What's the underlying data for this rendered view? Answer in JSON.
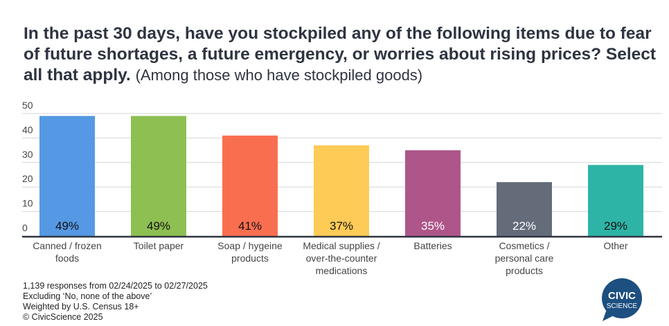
{
  "title": {
    "main": "In the past 30 days, have you stockpiled any of the following items due to fear of future shortages, a future emergency, or worries about rising prices? Select all that apply.",
    "sub": "(Among those who have stockpiled goods)"
  },
  "chart_data": {
    "type": "bar",
    "title": "In the past 30 days, have you stockpiled any of the following items due to fear of future shortages, a future emergency, or worries about rising prices? Select all that apply. (Among those who have stockpiled goods)",
    "categories": [
      [
        "Canned / frozen",
        "foods"
      ],
      [
        "Toilet paper"
      ],
      [
        "Soap / hygeine",
        "products"
      ],
      [
        "Medical supplies /",
        "over-the-counter",
        "medications"
      ],
      [
        "Batteries"
      ],
      [
        "Cosmetics /",
        "personal care",
        "products"
      ],
      [
        "Other"
      ]
    ],
    "values": [
      49,
      49,
      41,
      37,
      35,
      22,
      29
    ],
    "data_labels": [
      "49%",
      "49%",
      "41%",
      "37%",
      "35%",
      "22%",
      "29%"
    ],
    "colors": [
      "#5598e3",
      "#8ebf52",
      "#fa6e50",
      "#fdcb56",
      "#ae5689",
      "#646c7a",
      "#2eb4a6"
    ],
    "label_colors": [
      "#111111",
      "#111111",
      "#111111",
      "#111111",
      "#ffffff",
      "#ffffff",
      "#111111"
    ],
    "yticks": [
      0,
      10,
      20,
      30,
      40,
      50
    ],
    "ylim": [
      0,
      50
    ],
    "xlabel": "",
    "ylabel": "",
    "grid": true,
    "legend": "none"
  },
  "footnotes": [
    "1,139 responses from 02/24/2025 to 02/27/2025",
    "Excluding ‘No, none of the above’",
    "Weighted by U.S. Census 18+",
    "© CivicScience 2025"
  ],
  "logo": {
    "line1": "CIVIC",
    "line2": "SCIENCE",
    "color": "#1d4f80"
  }
}
